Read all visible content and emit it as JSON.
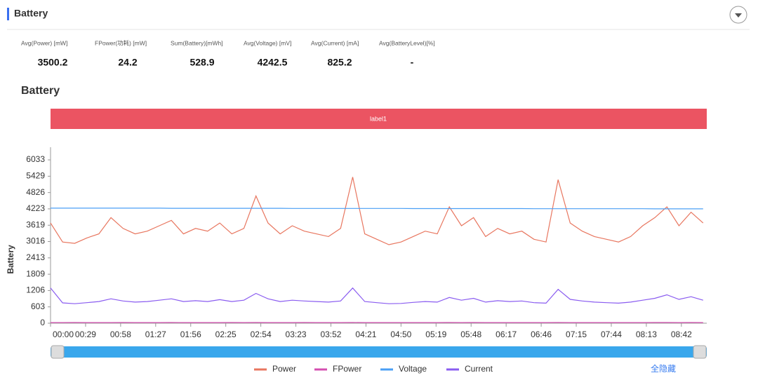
{
  "header": {
    "title": "Battery"
  },
  "stats": [
    {
      "label": "Avg(Power) [mW]",
      "value": "3500.2"
    },
    {
      "label": "FPower(功耗) [mW]",
      "value": "24.2"
    },
    {
      "label": "Sum(Battery)[mWh]",
      "value": "528.9"
    },
    {
      "label": "Avg(Voltage) [mV]",
      "value": "4242.5"
    },
    {
      "label": "Avg(Current) [mA]",
      "value": "825.2"
    },
    {
      "label": "Avg(BatteryLevel)[%]",
      "value": "-"
    }
  ],
  "hide_all": "全隐藏",
  "chart_data": {
    "type": "line",
    "title": "Battery",
    "band_label": "label1",
    "y_label": "Battery",
    "x": [
      0,
      10,
      20,
      30,
      40,
      50,
      60,
      70,
      80,
      90,
      100,
      110,
      120,
      130,
      140,
      150,
      160,
      170,
      180,
      190,
      200,
      210,
      220,
      230,
      240,
      250,
      260,
      270,
      280,
      290,
      300,
      310,
      320,
      330,
      340,
      350,
      360,
      370,
      380,
      390,
      400,
      410,
      420,
      430,
      440,
      450,
      460,
      470,
      480,
      490,
      500,
      510,
      520,
      530,
      540
    ],
    "xlim": [
      0,
      543
    ],
    "xticks": [
      {
        "value": 0,
        "label": "00:00"
      },
      {
        "value": 29,
        "label": "00:29"
      },
      {
        "value": 58,
        "label": "00:58"
      },
      {
        "value": 87,
        "label": "01:27"
      },
      {
        "value": 116,
        "label": "01:56"
      },
      {
        "value": 145,
        "label": "02:25"
      },
      {
        "value": 174,
        "label": "02:54"
      },
      {
        "value": 203,
        "label": "03:23"
      },
      {
        "value": 232,
        "label": "03:52"
      },
      {
        "value": 261,
        "label": "04:21"
      },
      {
        "value": 290,
        "label": "04:50"
      },
      {
        "value": 319,
        "label": "05:19"
      },
      {
        "value": 348,
        "label": "05:48"
      },
      {
        "value": 377,
        "label": "06:17"
      },
      {
        "value": 406,
        "label": "06:46"
      },
      {
        "value": 435,
        "label": "07:15"
      },
      {
        "value": 464,
        "label": "07:44"
      },
      {
        "value": 493,
        "label": "08:13"
      },
      {
        "value": 522,
        "label": "08:42"
      }
    ],
    "ylim": [
      0,
      6500
    ],
    "yticks": [
      0,
      603,
      1206,
      1809,
      2413,
      3016,
      3619,
      4223,
      4826,
      5429,
      6033
    ],
    "series": [
      {
        "name": "Power",
        "color": "#e8765f",
        "values": [
          3700,
          3000,
          2950,
          3150,
          3300,
          3900,
          3500,
          3300,
          3400,
          3600,
          3800,
          3300,
          3500,
          3400,
          3700,
          3300,
          3500,
          4700,
          3700,
          3300,
          3600,
          3400,
          3300,
          3200,
          3500,
          5400,
          3300,
          3100,
          2900,
          3000,
          3200,
          3400,
          3300,
          4300,
          3600,
          3900,
          3200,
          3500,
          3300,
          3400,
          3100,
          3000,
          5300,
          3700,
          3400,
          3200,
          3100,
          3000,
          3200,
          3600,
          3900,
          4300,
          3600,
          4100,
          3700
        ]
      },
      {
        "name": "FPower",
        "color": "#d44fb0",
        "values": [
          24,
          24,
          25,
          24,
          23,
          24,
          25,
          24,
          24,
          24,
          25,
          24,
          23,
          24,
          24,
          25,
          24,
          26,
          24,
          24,
          24,
          25,
          24,
          23,
          24,
          26,
          24,
          24,
          23,
          24,
          24,
          24,
          24,
          25,
          24,
          25,
          24,
          24,
          24,
          24,
          23,
          24,
          26,
          24,
          24,
          24,
          23,
          24,
          24,
          24,
          25,
          25,
          24,
          25,
          24
        ]
      },
      {
        "name": "Voltage",
        "color": "#4a9ff5",
        "values": [
          4250,
          4250,
          4250,
          4250,
          4250,
          4250,
          4250,
          4250,
          4250,
          4250,
          4245,
          4245,
          4245,
          4245,
          4245,
          4245,
          4245,
          4245,
          4245,
          4245,
          4240,
          4240,
          4240,
          4240,
          4240,
          4240,
          4240,
          4240,
          4240,
          4240,
          4235,
          4235,
          4235,
          4235,
          4235,
          4235,
          4235,
          4235,
          4235,
          4235,
          4230,
          4230,
          4230,
          4230,
          4230,
          4230,
          4230,
          4230,
          4230,
          4230,
          4225,
          4225,
          4225,
          4225,
          4225
        ]
      },
      {
        "name": "Current",
        "color": "#8a5cf0",
        "values": [
          1300,
          750,
          720,
          760,
          800,
          900,
          820,
          780,
          800,
          850,
          900,
          800,
          830,
          800,
          870,
          800,
          850,
          1100,
          900,
          800,
          850,
          820,
          800,
          780,
          820,
          1300,
          800,
          760,
          720,
          730,
          770,
          800,
          780,
          950,
          850,
          920,
          780,
          830,
          800,
          820,
          760,
          740,
          1250,
          880,
          820,
          780,
          760,
          740,
          780,
          850,
          920,
          1050,
          880,
          980,
          850
        ]
      }
    ]
  }
}
